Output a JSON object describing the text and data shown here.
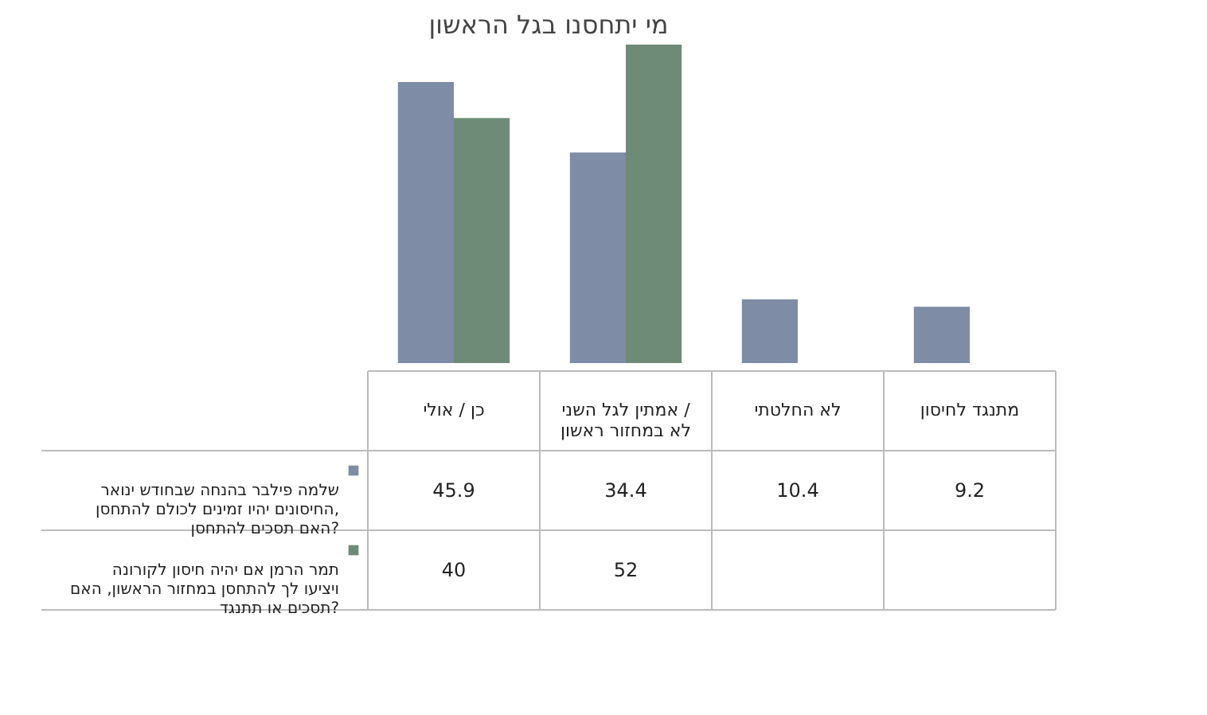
{
  "chart_data": {
    "type": "bar",
    "title": "מי יתחסנו בגל הראשון",
    "categories": [
      "כן / אולי",
      "אמתין לגל השני / לא במחזור ראשון",
      "לא החלטתי",
      "מתנגד לחיסון"
    ],
    "series": [
      {
        "name": "שלמה פילבר בהנחה שבחודש ינואר החיסונים יהיו זמינים לכולם להתחסן, האם תסכים להתחסן?",
        "color": "#7e8ca6",
        "values": [
          45.9,
          34.4,
          10.4,
          9.2
        ]
      },
      {
        "name": "תמר הרמן אם יהיה חיסון לקורונה ויציעו לך להתחסן במחזור הראשון, האם תסכים או תתנגד?",
        "color": "#6e8b78",
        "values": [
          40,
          52,
          null,
          null
        ]
      }
    ],
    "data_labels": true,
    "legend": "bottom left"
  }
}
